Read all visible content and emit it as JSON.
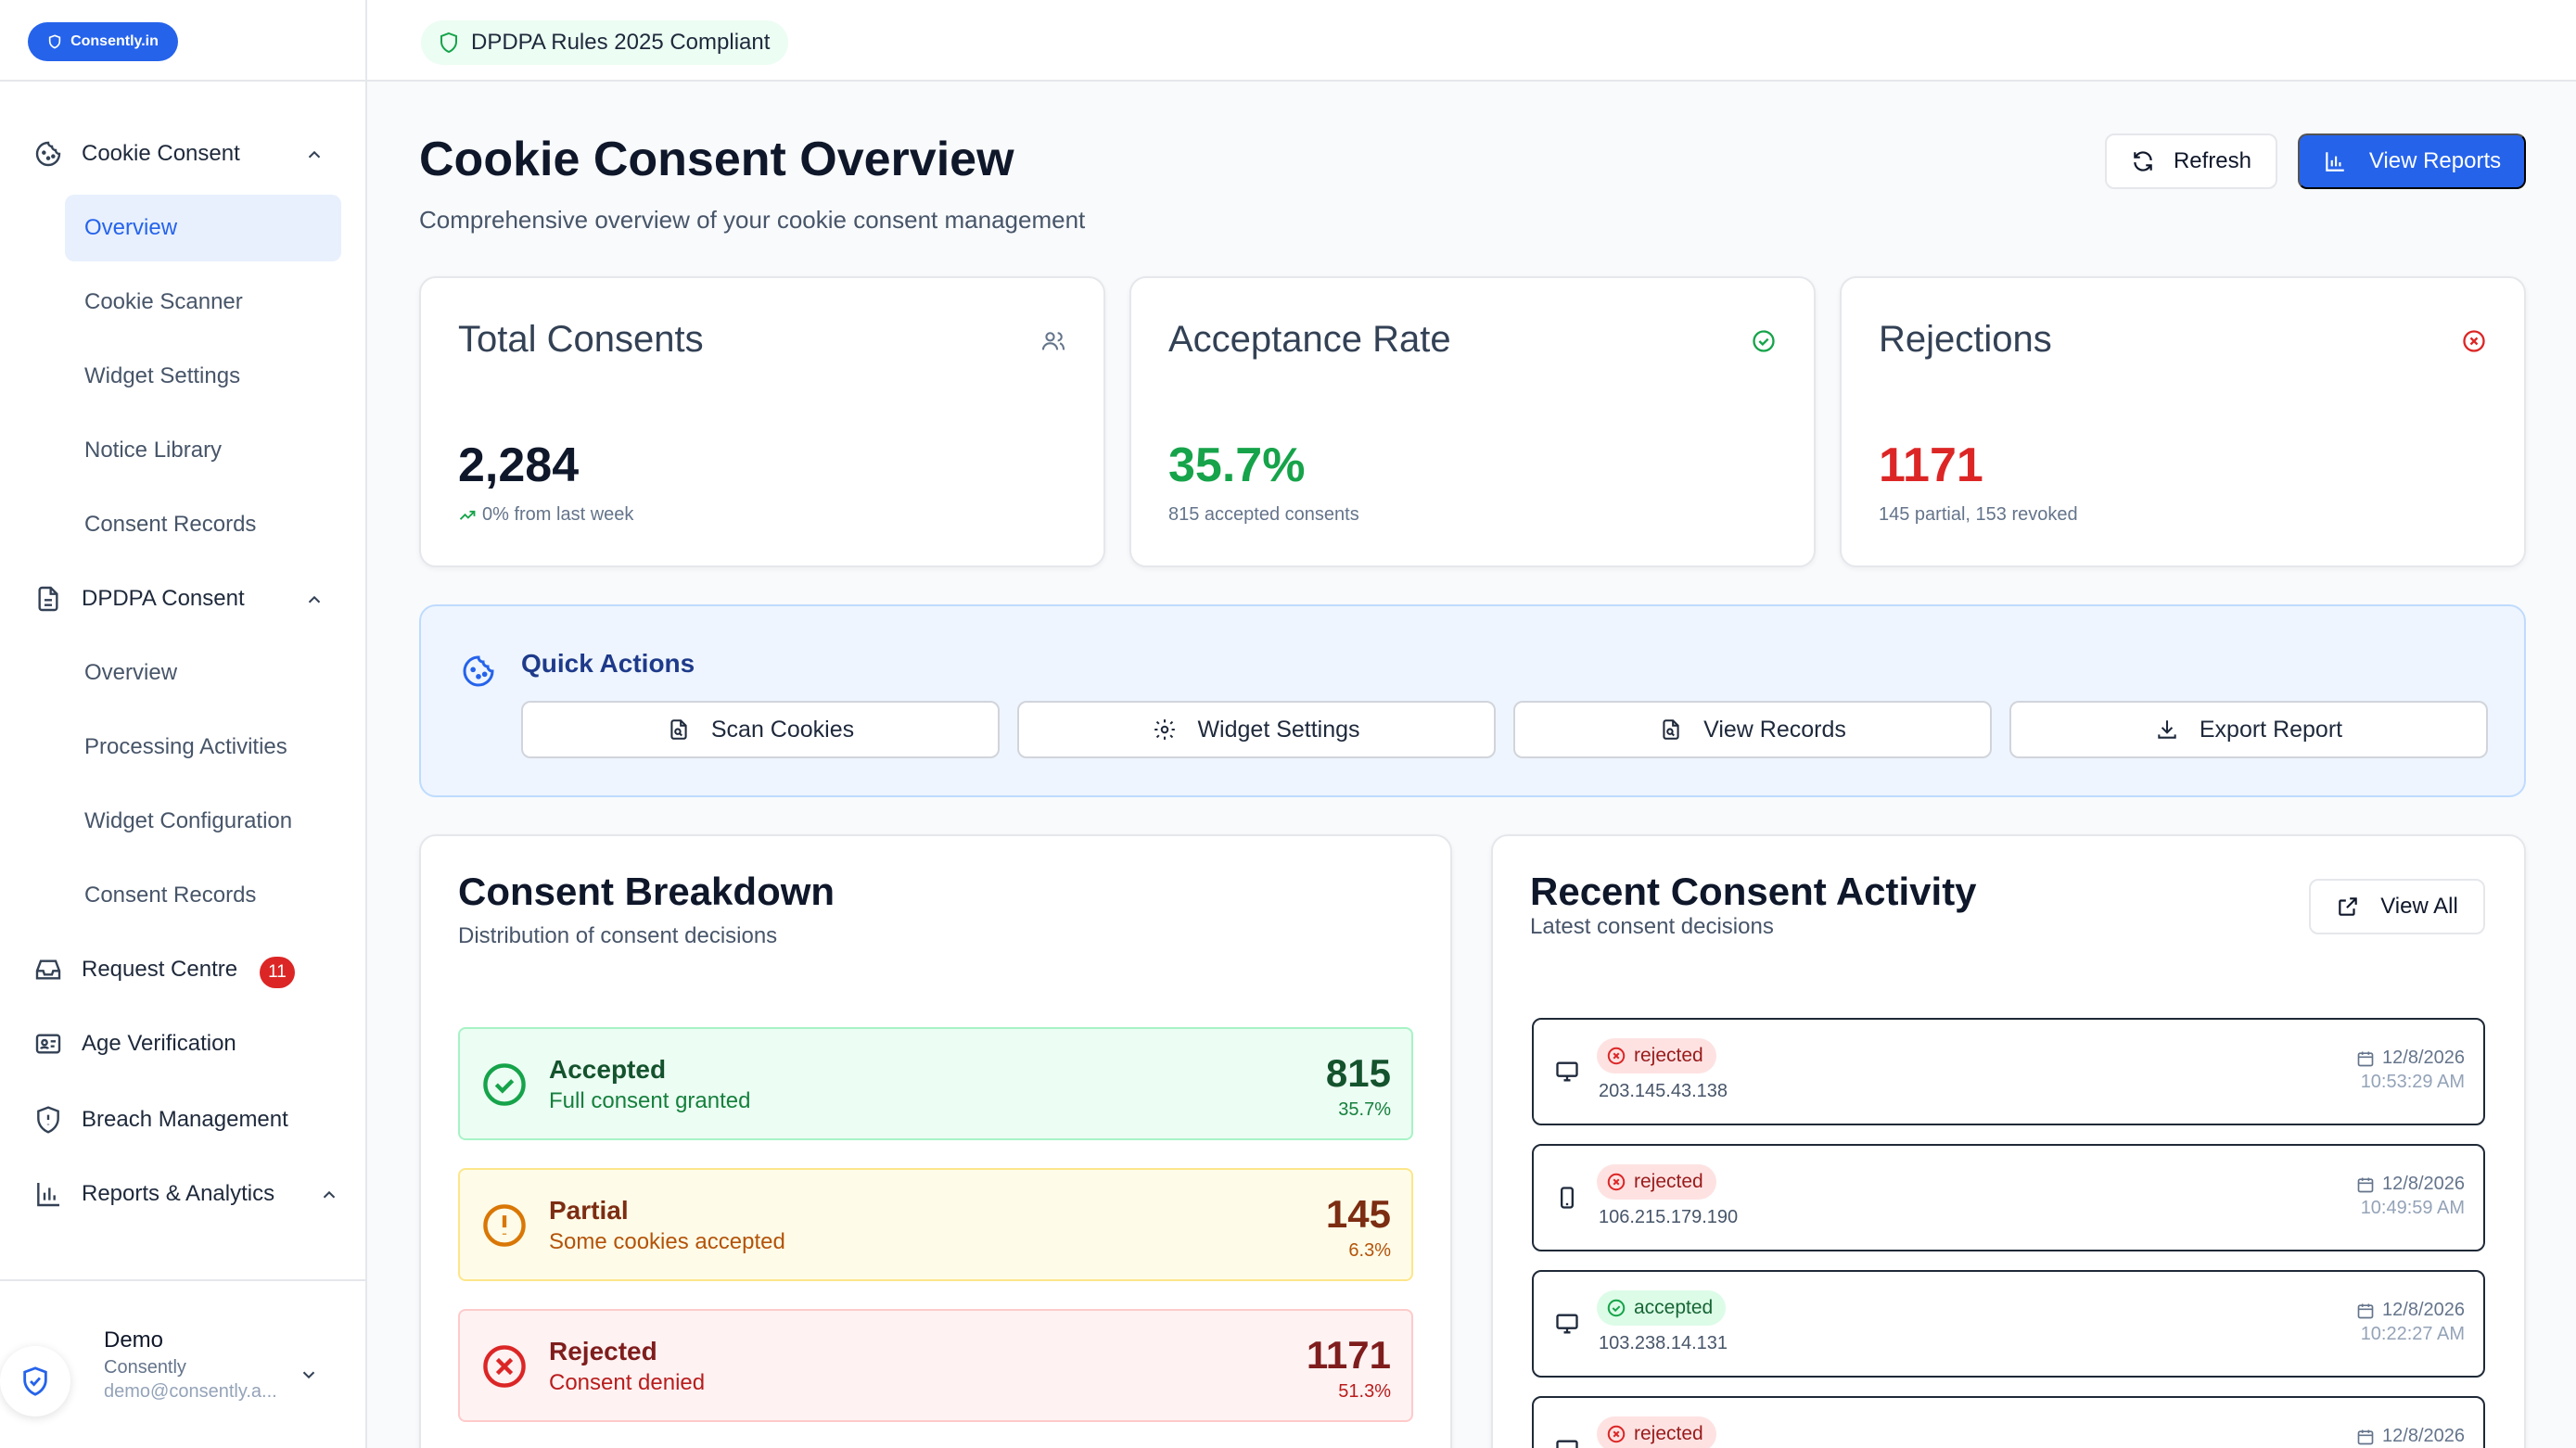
{
  "brand": {
    "name": "Consently.in"
  },
  "topbar": {
    "compliance": "DPDPA Rules 2025 Compliant"
  },
  "sidebar": {
    "cookie_section": "Cookie Consent",
    "cookie_items": [
      "Overview",
      "Cookie Scanner",
      "Widget Settings",
      "Notice Library",
      "Consent Records"
    ],
    "dpdpa_section": "DPDPA Consent",
    "dpdpa_items": [
      "Overview",
      "Processing Activities",
      "Widget Configuration",
      "Consent Records"
    ],
    "request_centre": "Request Centre",
    "request_count": "11",
    "age_verification": "Age Verification",
    "breach_management": "Breach Management",
    "reports": "Reports & Analytics",
    "user": {
      "name": "Demo",
      "org": "Consently",
      "email": "demo@consently.a..."
    }
  },
  "header": {
    "title": "Cookie Consent Overview",
    "subtitle": "Comprehensive overview of your cookie consent management",
    "refresh": "Refresh",
    "view_reports": "View Reports"
  },
  "stats": {
    "total": {
      "title": "Total Consents",
      "value": "2,284",
      "note": "0% from last week"
    },
    "acceptance": {
      "title": "Acceptance Rate",
      "value": "35.7%",
      "note": "815 accepted consents"
    },
    "rejections": {
      "title": "Rejections",
      "value": "1171",
      "note": "145 partial, 153 revoked"
    }
  },
  "quick_actions": {
    "title": "Quick Actions",
    "scan": "Scan Cookies",
    "widget": "Widget Settings",
    "records": "View Records",
    "export": "Export Report"
  },
  "breakdown": {
    "title": "Consent Breakdown",
    "subtitle": "Distribution of consent decisions",
    "accepted": {
      "label": "Accepted",
      "desc": "Full consent granted",
      "count": "815",
      "pct": "35.7%"
    },
    "partial": {
      "label": "Partial",
      "desc": "Some cookies accepted",
      "count": "145",
      "pct": "6.3%"
    },
    "rejected": {
      "label": "Rejected",
      "desc": "Consent denied",
      "count": "1171",
      "pct": "51.3%"
    }
  },
  "activity": {
    "title": "Recent Consent Activity",
    "subtitle": "Latest consent decisions",
    "view_all": "View All",
    "items": [
      {
        "status": "rejected",
        "ip": "203.145.43.138",
        "date": "12/8/2026",
        "time": "10:53:29 AM"
      },
      {
        "status": "rejected",
        "ip": "106.215.179.190",
        "date": "12/8/2026",
        "time": "10:49:59 AM"
      },
      {
        "status": "accepted",
        "ip": "103.238.14.131",
        "date": "12/8/2026",
        "time": "10:22:27 AM"
      },
      {
        "status": "rejected",
        "ip": "",
        "date": "12/8/2026",
        "time": ""
      }
    ]
  },
  "colors": {
    "primary": "#2563eb",
    "accepted": "#16a34a",
    "rejected": "#dc2626",
    "partial": "#d97706"
  }
}
